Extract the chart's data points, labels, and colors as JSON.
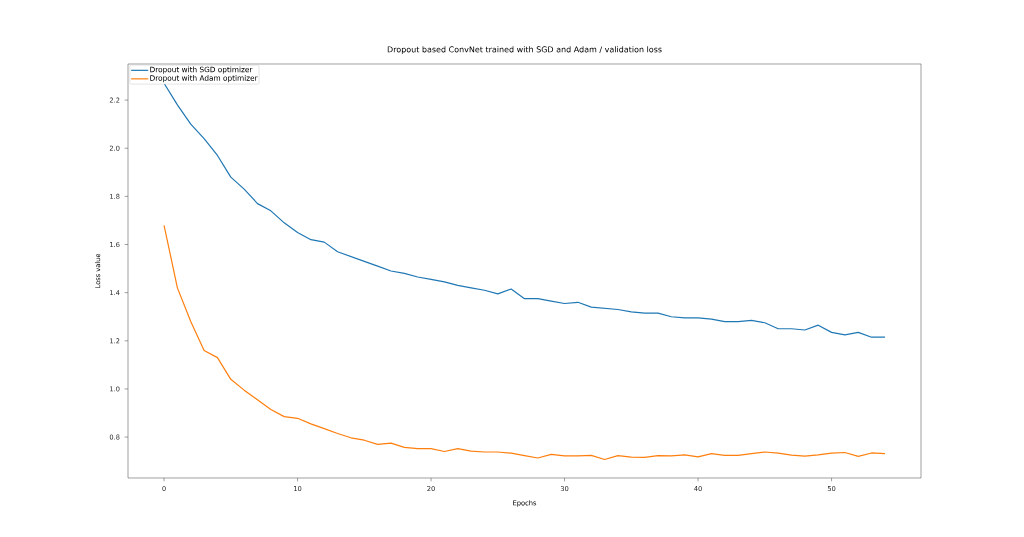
{
  "chart_data": {
    "type": "line",
    "title": "Dropout based ConvNet trained with SGD and Adam / validation loss",
    "xlabel": "Epochs",
    "ylabel": "Loss value",
    "x": [
      0,
      1,
      2,
      3,
      4,
      5,
      6,
      7,
      8,
      9,
      10,
      11,
      12,
      13,
      14,
      15,
      16,
      17,
      18,
      19,
      20,
      21,
      22,
      23,
      24,
      25,
      26,
      27,
      28,
      29,
      30,
      31,
      32,
      33,
      34,
      35,
      36,
      37,
      38,
      39,
      40,
      41,
      42,
      43,
      44,
      45,
      46,
      47,
      48,
      49,
      50,
      51,
      52,
      53,
      54
    ],
    "series": [
      {
        "name": "Dropout with SGD optimizer",
        "color": "#1f77b4",
        "values": [
          2.27,
          2.18,
          2.1,
          2.04,
          1.97,
          1.88,
          1.83,
          1.77,
          1.74,
          1.69,
          1.65,
          1.62,
          1.61,
          1.57,
          1.55,
          1.53,
          1.51,
          1.49,
          1.48,
          1.465,
          1.455,
          1.445,
          1.43,
          1.42,
          1.41,
          1.395,
          1.415,
          1.375,
          1.375,
          1.365,
          1.355,
          1.36,
          1.34,
          1.335,
          1.33,
          1.32,
          1.315,
          1.315,
          1.3,
          1.295,
          1.295,
          1.29,
          1.28,
          1.28,
          1.285,
          1.275,
          1.25,
          1.25,
          1.245,
          1.265,
          1.235,
          1.225,
          1.235,
          1.215,
          1.215
        ]
      },
      {
        "name": "Dropout with Adam optimizer",
        "color": "#ff7f0e",
        "values": [
          1.68,
          1.42,
          1.28,
          1.16,
          1.13,
          1.04,
          0.995,
          0.955,
          0.915,
          0.885,
          0.878,
          0.855,
          0.835,
          0.815,
          0.797,
          0.787,
          0.77,
          0.775,
          0.757,
          0.752,
          0.752,
          0.74,
          0.752,
          0.742,
          0.738,
          0.738,
          0.733,
          0.723,
          0.713,
          0.728,
          0.722,
          0.722,
          0.724,
          0.707,
          0.723,
          0.717,
          0.716,
          0.723,
          0.722,
          0.726,
          0.718,
          0.731,
          0.724,
          0.724,
          0.731,
          0.738,
          0.733,
          0.725,
          0.721,
          0.726,
          0.733,
          0.736,
          0.72,
          0.734,
          0.731
        ]
      }
    ],
    "xlim": [
      -2.7,
      56.7
    ],
    "ylim": [
      0.63,
      2.35
    ],
    "xticks": [
      0,
      10,
      20,
      30,
      40,
      50
    ],
    "yticks": [
      {
        "value": 0.8,
        "label": "0.8"
      },
      {
        "value": 1.0,
        "label": "1.0"
      },
      {
        "value": 1.2,
        "label": "1.2"
      },
      {
        "value": 1.4,
        "label": "1.4"
      },
      {
        "value": 1.6,
        "label": "1.6"
      },
      {
        "value": 1.8,
        "label": "1.8"
      },
      {
        "value": 2.0,
        "label": "2.0"
      },
      {
        "value": 2.2,
        "label": "2.2"
      }
    ],
    "legend": "top left",
    "grid": false
  }
}
